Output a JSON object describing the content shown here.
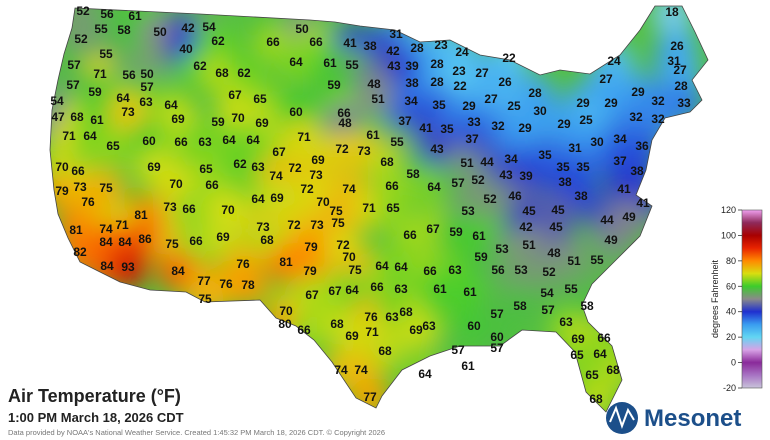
{
  "title": "Air Temperature (°F)",
  "subtitle": "1:00 PM March 18, 2026 CDT",
  "credit": "Data provided by NOAA's National Weather Service. Created 1:45:32 PM March 18, 2026 CDT. © Copyright 2026",
  "logo": "Mesonet",
  "legend": {
    "label": "degrees Fahrenheit",
    "range": [
      -20,
      120
    ],
    "ticks": [
      120,
      100,
      80,
      60,
      40,
      20,
      0,
      -20
    ],
    "colors": [
      "#c9c4da",
      "#a874c4",
      "#8a2a9a",
      "#d7a2e6",
      "#62d6f2",
      "#3a9cf0",
      "#1f2fcf",
      "#8a8a8a",
      "#3ccc2c",
      "#d8de10",
      "#ff8a00",
      "#e82400",
      "#a80000",
      "#8e2a5a",
      "#f0a0f0"
    ]
  },
  "stations": [
    52,
    56,
    61,
    18,
    55,
    58,
    50,
    42,
    54,
    50,
    31,
    52,
    40,
    62,
    66,
    66,
    41,
    38,
    42,
    28,
    23,
    24,
    22,
    26,
    55,
    57,
    71,
    56,
    50,
    62,
    68,
    62,
    64,
    61,
    55,
    43,
    39,
    28,
    23,
    27,
    24,
    31,
    57,
    59,
    57,
    64,
    63,
    64,
    67,
    65,
    59,
    48,
    38,
    28,
    22,
    26,
    27,
    27,
    28,
    54,
    47,
    68,
    61,
    73,
    69,
    59,
    70,
    69,
    60,
    66,
    51,
    34,
    35,
    29,
    27,
    25,
    28,
    30,
    29,
    29,
    29,
    32,
    33,
    71,
    64,
    65,
    60,
    66,
    63,
    64,
    64,
    67,
    71,
    48,
    61,
    37,
    41,
    35,
    33,
    32,
    29,
    25,
    32,
    32,
    55,
    43,
    37,
    29,
    31,
    30,
    34,
    36,
    70,
    66,
    69,
    65,
    62,
    63,
    72,
    69,
    72,
    73,
    68,
    58,
    51,
    44,
    34,
    35,
    35,
    35,
    37,
    38,
    79,
    73,
    75,
    70,
    66,
    74,
    73,
    72,
    74,
    66,
    64,
    57,
    52,
    43,
    39,
    38,
    41,
    38,
    41,
    76,
    73,
    66,
    64,
    69,
    70,
    75,
    71,
    65,
    46,
    52,
    70,
    81,
    53,
    45,
    45,
    44,
    49,
    81,
    74,
    71,
    73,
    72,
    73,
    75,
    67,
    59,
    61,
    42,
    45,
    84,
    84,
    86,
    75,
    66,
    69,
    68,
    79,
    72,
    66,
    49,
    53,
    51,
    48,
    82,
    70,
    81,
    76,
    64,
    64,
    66,
    63,
    59,
    51,
    55,
    84,
    93,
    84,
    79,
    75,
    56,
    53,
    52,
    77,
    76,
    78,
    66,
    63,
    61,
    61,
    54,
    55,
    67,
    67,
    64,
    75,
    70,
    58,
    57,
    58,
    68,
    76,
    63,
    63,
    80,
    66,
    68,
    69,
    71,
    63,
    60,
    69,
    57,
    66,
    69,
    60,
    68,
    57,
    57,
    64,
    65,
    61,
    74,
    74,
    68,
    65,
    64,
    77,
    68
  ]
}
